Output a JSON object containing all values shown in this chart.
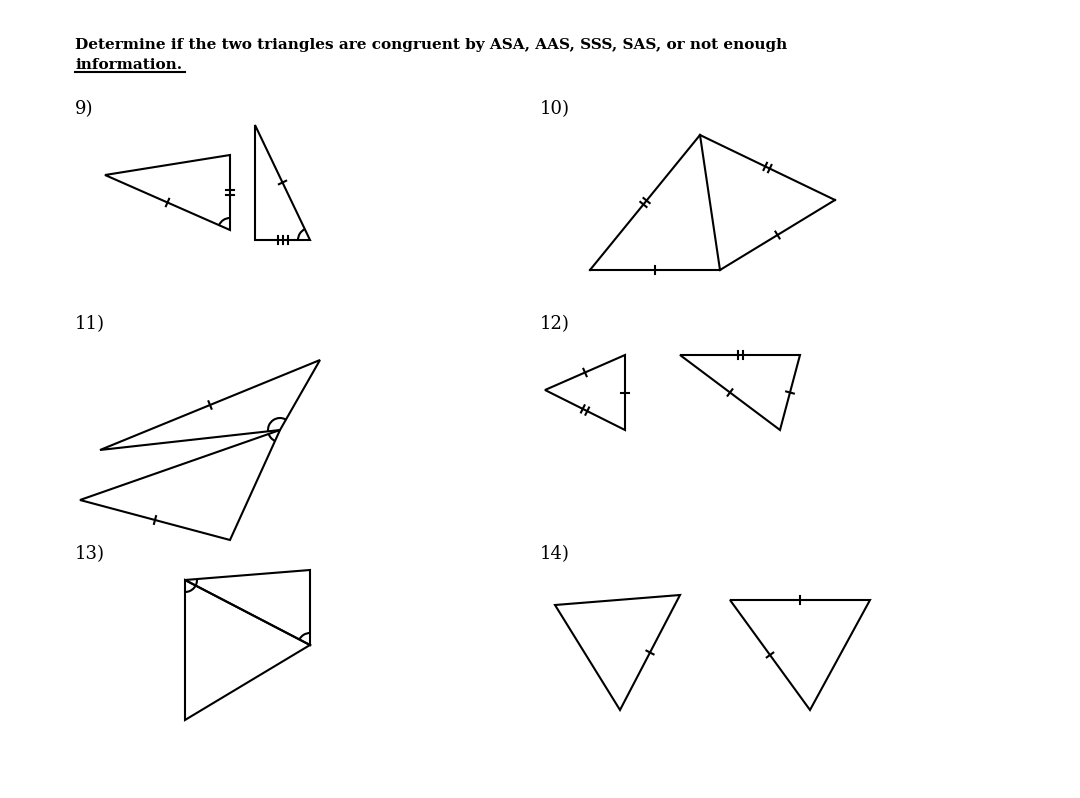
{
  "title_line1": "Determine if the two triangles are congruent by ASA, AAS, SSS, SAS, or not enough",
  "title_line2": "information.",
  "bg_color": "#ffffff",
  "problems": [
    {
      "label": "9)"
    },
    {
      "label": "10)"
    },
    {
      "label": "11)"
    },
    {
      "label": "12)"
    },
    {
      "label": "13)"
    },
    {
      "label": "14)"
    }
  ]
}
